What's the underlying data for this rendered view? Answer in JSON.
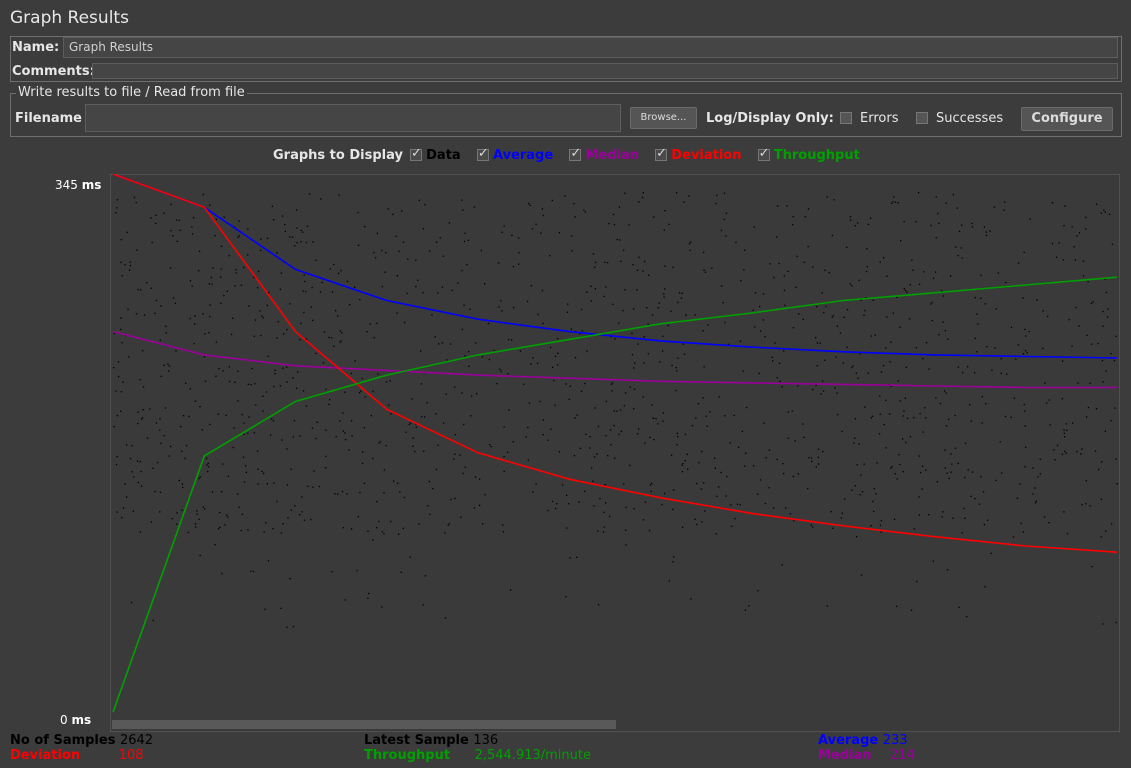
{
  "panel_title": "Graph Results",
  "name_label": "Name:",
  "name_value": "Graph Results",
  "comments_label": "Comments:",
  "comments_value": "",
  "file_group_title": "Write results to file / Read from file",
  "filename_label": "Filename",
  "filename_value": "",
  "browse_label": "Browse...",
  "log_display_label": "Log/Display Only:",
  "errors_label": "Errors",
  "successes_label": "Successes",
  "configure_label": "Configure",
  "graphs_to_display_label": "Graphs to Display",
  "legend": [
    {
      "label": "Data",
      "color": "#000000",
      "checked": true
    },
    {
      "label": "Average",
      "color": "#0000ff",
      "checked": true
    },
    {
      "label": "Median",
      "color": "#9b009b",
      "checked": true
    },
    {
      "label": "Deviation",
      "color": "#ff0000",
      "checked": true
    },
    {
      "label": "Throughput",
      "color": "#00a000",
      "checked": true
    }
  ],
  "y_max_label": "345",
  "y_min_label": "0",
  "y_unit": "ms",
  "stats": {
    "samples_label": "No of Samples",
    "samples_value": "2642",
    "deviation_label": "Deviation",
    "deviation_value": "108",
    "latest_label": "Latest Sample",
    "latest_value": "136",
    "throughput_label": "Throughput",
    "throughput_value": "2,544.913/minute",
    "average_label": "Average",
    "average_value": "233",
    "median_label": "Median",
    "median_value": "214"
  },
  "chart_data": {
    "type": "line",
    "ylim": [
      0,
      345
    ],
    "yunit": "ms",
    "series": [
      {
        "name": "Average",
        "color": "#0000ff",
        "values": [
          400,
          330,
          290,
          270,
          258,
          250,
          244,
          240,
          237,
          235,
          234,
          233
        ]
      },
      {
        "name": "Median",
        "color": "#9b009b",
        "values": [
          250,
          235,
          228,
          225,
          222,
          220,
          218,
          217,
          216,
          215,
          214,
          214
        ]
      },
      {
        "name": "Deviation",
        "color": "#ff0000",
        "values": [
          420,
          330,
          250,
          200,
          172,
          155,
          143,
          133,
          125,
          118,
          112,
          108
        ]
      },
      {
        "name": "Throughput",
        "color": "#00a000",
        "values": [
          5,
          170,
          205,
          222,
          235,
          245,
          255,
          262,
          270,
          275,
          280,
          285
        ]
      }
    ]
  }
}
